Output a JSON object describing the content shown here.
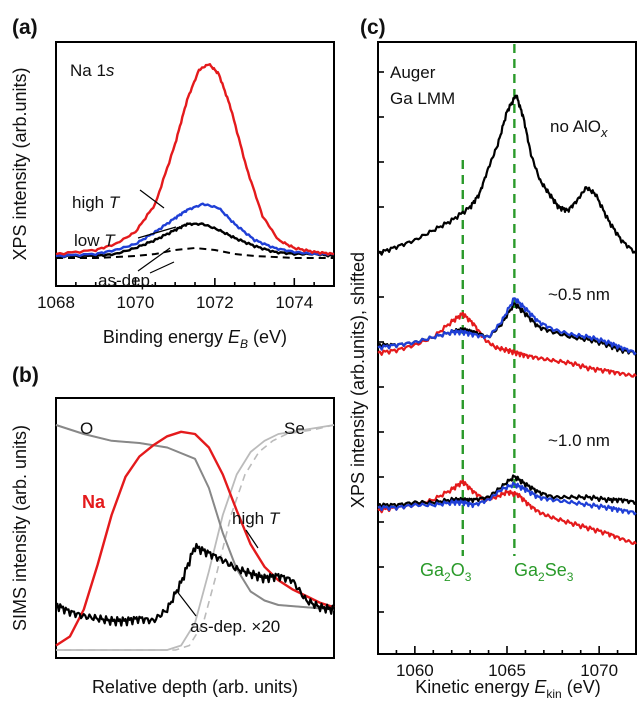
{
  "chart_data": [
    {
      "panel": "(a)",
      "type": "line",
      "annotation": "Na 1s",
      "xlabel": "Binding energy E_B (eV)",
      "ylabel": "XPS intensity (arb.units)",
      "xlim": [
        1068,
        1075
      ],
      "x_ticks": [
        "1068",
        "1070",
        "1072",
        "1074"
      ],
      "series": [
        {
          "name": "high T",
          "color": "#e41a1c",
          "x": [
            1068,
            1069,
            1069.5,
            1070,
            1070.5,
            1071,
            1071.3,
            1071.6,
            1071.85,
            1072.1,
            1072.4,
            1072.8,
            1073.2,
            1073.6,
            1074,
            1074.5,
            1075
          ],
          "y": [
            0.05,
            0.07,
            0.1,
            0.16,
            0.3,
            0.6,
            0.82,
            0.97,
            1.0,
            0.95,
            0.78,
            0.48,
            0.24,
            0.12,
            0.08,
            0.06,
            0.05
          ]
        },
        {
          "name": "low T",
          "color": "#1f3fd6",
          "x": [
            1068,
            1069,
            1069.5,
            1070,
            1070.5,
            1071,
            1071.3,
            1071.7,
            1072.1,
            1072.5,
            1073,
            1073.5,
            1074,
            1074.5,
            1075
          ],
          "y": [
            0.04,
            0.05,
            0.07,
            0.1,
            0.16,
            0.23,
            0.27,
            0.3,
            0.28,
            0.2,
            0.12,
            0.08,
            0.06,
            0.05,
            0.05
          ]
        },
        {
          "name": "as-dep.",
          "color": "#000000",
          "x": [
            1068,
            1069,
            1069.5,
            1070,
            1070.5,
            1071,
            1071.3,
            1071.7,
            1072.1,
            1072.5,
            1073,
            1073.5,
            1074,
            1074.5,
            1075
          ],
          "y": [
            0.04,
            0.04,
            0.05,
            0.08,
            0.12,
            0.17,
            0.2,
            0.2,
            0.17,
            0.13,
            0.09,
            0.06,
            0.05,
            0.05,
            0.04
          ]
        },
        {
          "name": "as-dep. (dashed)",
          "color": "#000000",
          "dashed": true,
          "x": [
            1068,
            1069,
            1070,
            1070.5,
            1071,
            1071.5,
            1072,
            1072.5,
            1073,
            1074,
            1075
          ],
          "y": [
            0.03,
            0.03,
            0.04,
            0.05,
            0.07,
            0.08,
            0.07,
            0.05,
            0.04,
            0.03,
            0.03
          ]
        }
      ],
      "labels": [
        "high T",
        "low T",
        "as-dep."
      ]
    },
    {
      "panel": "(b)",
      "type": "line",
      "xlabel": "Relative depth (arb. units)",
      "ylabel": "SIMS intensity (arb. units)",
      "annotations": [
        "O",
        "Se",
        "Na",
        "high T",
        "as-dep. ×20"
      ],
      "series": [
        {
          "name": "Na",
          "color": "#e41a1c",
          "x": [
            0,
            0.05,
            0.1,
            0.15,
            0.2,
            0.25,
            0.3,
            0.35,
            0.4,
            0.45,
            0.5,
            0.55,
            0.6,
            0.65,
            0.7,
            0.75,
            0.8,
            0.85,
            0.9,
            0.95,
            1.0
          ],
          "y": [
            0.02,
            0.06,
            0.18,
            0.38,
            0.6,
            0.77,
            0.86,
            0.91,
            0.95,
            0.97,
            0.96,
            0.9,
            0.78,
            0.62,
            0.47,
            0.37,
            0.31,
            0.27,
            0.24,
            0.21,
            0.19
          ]
        },
        {
          "name": "as-dep. ×20",
          "color": "#000000",
          "x": [
            0,
            0.05,
            0.1,
            0.15,
            0.2,
            0.25,
            0.3,
            0.35,
            0.4,
            0.45,
            0.5,
            0.55,
            0.6,
            0.65,
            0.7,
            0.75,
            0.8,
            0.85,
            0.9,
            0.95,
            1.0
          ],
          "y": [
            0.2,
            0.17,
            0.15,
            0.14,
            0.13,
            0.13,
            0.14,
            0.13,
            0.18,
            0.3,
            0.46,
            0.43,
            0.4,
            0.36,
            0.34,
            0.32,
            0.33,
            0.31,
            0.22,
            0.19,
            0.18
          ]
        },
        {
          "name": "O",
          "color": "#888888",
          "x": [
            0,
            0.1,
            0.2,
            0.3,
            0.4,
            0.5,
            0.55,
            0.6,
            0.65,
            0.7,
            0.75,
            0.8,
            0.9,
            1.0
          ],
          "y": [
            1.0,
            0.96,
            0.93,
            0.92,
            0.9,
            0.85,
            0.72,
            0.52,
            0.36,
            0.26,
            0.22,
            0.2,
            0.19,
            0.18
          ]
        },
        {
          "name": "Se",
          "color": "#bbbbbb",
          "x": [
            0,
            0.3,
            0.4,
            0.45,
            0.5,
            0.55,
            0.6,
            0.65,
            0.7,
            0.75,
            0.8,
            0.9,
            1.0
          ],
          "y": [
            0.0,
            0.0,
            0.0,
            0.02,
            0.12,
            0.35,
            0.6,
            0.78,
            0.88,
            0.93,
            0.96,
            0.98,
            1.0
          ]
        }
      ]
    },
    {
      "panel": "(c)",
      "type": "line",
      "annotation": "Auger Ga LMM",
      "xlabel": "Kinetic energy E_kin (eV)",
      "ylabel": "XPS intensity (arb.units), shifted",
      "xlim": [
        1058,
        1072
      ],
      "x_ticks": [
        "1060",
        "1065",
        "1070"
      ],
      "vlines": [
        {
          "x": 1062.6,
          "label": "Ga2O3"
        },
        {
          "x": 1065.4,
          "label": "Ga2Se3"
        }
      ],
      "curve_labels": [
        "no AlOx",
        "~0.5 nm",
        "~1.0 nm"
      ],
      "series": [
        {
          "name": "no AlOx",
          "color": "#000000",
          "x": [
            1058,
            1059,
            1060,
            1061,
            1062,
            1063,
            1063.5,
            1064,
            1064.5,
            1065,
            1065.5,
            1065.9,
            1066.3,
            1066.8,
            1067.3,
            1067.8,
            1068.3,
            1068.8,
            1069.3,
            1069.8,
            1070.5,
            1071.2,
            1072
          ],
          "y": [
            0.52,
            0.54,
            0.56,
            0.59,
            0.62,
            0.66,
            0.7,
            0.78,
            0.85,
            0.95,
            1.0,
            0.93,
            0.82,
            0.74,
            0.7,
            0.66,
            0.65,
            0.68,
            0.72,
            0.7,
            0.62,
            0.56,
            0.52
          ]
        },
        {
          "name": "~0.5 nm black",
          "color": "#000000",
          "x": [
            1058,
            1059,
            1060,
            1061,
            1062,
            1062.6,
            1063.2,
            1064,
            1064.7,
            1065.4,
            1066,
            1066.7,
            1067.5,
            1068.5,
            1069.5,
            1070.5,
            1071.2,
            1072
          ],
          "y": [
            0.25,
            0.25,
            0.26,
            0.28,
            0.3,
            0.31,
            0.3,
            0.28,
            0.33,
            0.41,
            0.37,
            0.32,
            0.3,
            0.28,
            0.27,
            0.25,
            0.23,
            0.22
          ]
        },
        {
          "name": "~0.5 nm blue",
          "color": "#1f3fd6",
          "x": [
            1058,
            1059,
            1060,
            1061,
            1062,
            1062.6,
            1063.2,
            1064,
            1064.7,
            1065.4,
            1066,
            1066.7,
            1067.5,
            1068.5,
            1069.5,
            1070.5,
            1071.2,
            1072
          ],
          "y": [
            0.24,
            0.25,
            0.26,
            0.28,
            0.3,
            0.3,
            0.29,
            0.28,
            0.34,
            0.43,
            0.39,
            0.34,
            0.31,
            0.29,
            0.28,
            0.26,
            0.24,
            0.22
          ]
        },
        {
          "name": "~0.5 nm red",
          "color": "#e41a1c",
          "x": [
            1058,
            1059,
            1060,
            1061,
            1062,
            1062.6,
            1063.2,
            1063.8,
            1064.4,
            1065,
            1065.5,
            1066,
            1066.7,
            1067.5,
            1068.5,
            1069.5,
            1070.5,
            1071.2,
            1072
          ],
          "y": [
            0.22,
            0.23,
            0.25,
            0.28,
            0.34,
            0.37,
            0.33,
            0.27,
            0.24,
            0.23,
            0.22,
            0.21,
            0.2,
            0.19,
            0.18,
            0.16,
            0.15,
            0.14,
            0.13
          ]
        },
        {
          "name": "~1.0 nm black",
          "color": "#000000",
          "x": [
            1058,
            1059,
            1060,
            1061,
            1062,
            1062.6,
            1063.2,
            1064,
            1064.7,
            1065.4,
            1066,
            1066.7,
            1067.5,
            1068.5,
            1069.5,
            1070.5,
            1071.2,
            1072
          ],
          "y": [
            0.0,
            0.0,
            0.01,
            0.01,
            0.02,
            0.02,
            0.02,
            0.03,
            0.07,
            0.11,
            0.08,
            0.05,
            0.03,
            0.03,
            0.03,
            0.02,
            0.02,
            0.01
          ]
        },
        {
          "name": "~1.0 nm blue",
          "color": "#1f3fd6",
          "x": [
            1058,
            1059,
            1060,
            1061,
            1062,
            1062.6,
            1063.2,
            1064,
            1064.7,
            1065.4,
            1066,
            1066.7,
            1067.5,
            1068.5,
            1069.5,
            1070.5,
            1071.2,
            1072
          ],
          "y": [
            -0.01,
            -0.01,
            0.0,
            0.0,
            0.01,
            0.01,
            0.0,
            0.02,
            0.06,
            0.08,
            0.06,
            0.03,
            0.02,
            0.01,
            0.0,
            -0.01,
            -0.02,
            -0.03
          ]
        },
        {
          "name": "~1.0 nm red",
          "color": "#e41a1c",
          "x": [
            1058,
            1059,
            1060,
            1061,
            1062,
            1062.6,
            1063.2,
            1063.8,
            1064.4,
            1065,
            1065.6,
            1066.2,
            1066.8,
            1067.5,
            1068.5,
            1069.5,
            1070.5,
            1071.2,
            1072
          ],
          "y": [
            -0.02,
            -0.01,
            0.0,
            0.02,
            0.06,
            0.09,
            0.05,
            0.02,
            0.03,
            0.05,
            0.04,
            0.0,
            -0.03,
            -0.05,
            -0.07,
            -0.09,
            -0.11,
            -0.13,
            -0.15
          ]
        }
      ]
    }
  ],
  "text": {
    "panel_a": "(a)",
    "panel_b": "(b)",
    "panel_c": "(c)",
    "a_title_main": "Na 1",
    "a_title_italic": "s",
    "a_ylabel": "XPS intensity (arb.units)",
    "a_xlabel_main": "Binding energy ",
    "a_xlabel_sym": "E",
    "a_xlabel_sub": "B",
    "a_xlabel_unit": " (eV)",
    "a_high_t": "high ",
    "a_low_t": "low ",
    "t_sym": "T",
    "a_asdep": "as-dep.",
    "b_ylabel": "SIMS intensity (arb. units)",
    "b_xlabel": "Relative depth (arb. units)",
    "b_o": "O",
    "b_se": "Se",
    "b_na": "Na",
    "b_hight": "high ",
    "b_asdep": "as-dep. ×20",
    "c_auger": "Auger",
    "c_ga": "Ga LMM",
    "c_noalox": "no AlO",
    "c_noalox_sub": "x",
    "c_05": "~0.5 nm",
    "c_10": "~1.0 nm",
    "c_ylabel": "XPS intensity (arb.units), shifted",
    "c_xlabel_main": "Kinetic energy ",
    "c_xlabel_sym": "E",
    "c_xlabel_sub": "kin",
    "c_xlabel_unit": " (eV)",
    "ga2o3_a": "Ga",
    "ga2o3_b": "2",
    "ga2o3_c": "O",
    "ga2o3_d": "3",
    "ga2se3_a": "Ga",
    "ga2se3_b": "2",
    "ga2se3_c": "Se",
    "ga2se3_d": "3"
  },
  "colors": {
    "red": "#e41a1c",
    "blue": "#1f3fd6",
    "green": "#2a9a2a",
    "gray": "#888888",
    "lightgray": "#bbbbbb"
  }
}
